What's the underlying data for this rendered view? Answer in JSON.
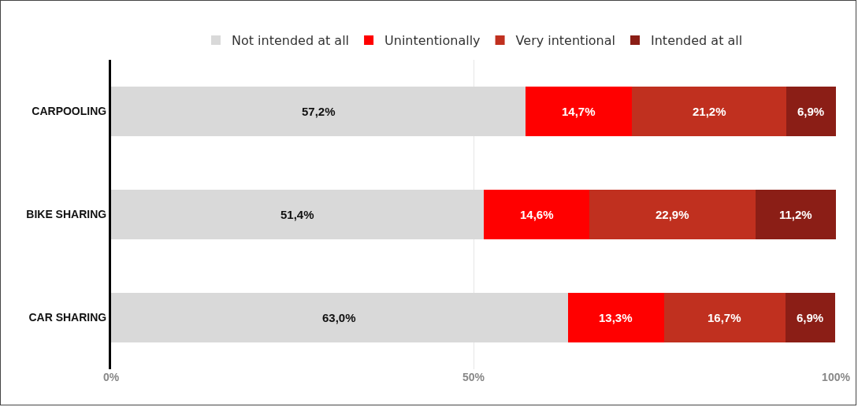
{
  "chart_data": {
    "type": "bar",
    "orientation": "horizontal",
    "stacked": true,
    "categories": [
      "CARPOOLING",
      "BIKE SHARING",
      "CAR SHARING"
    ],
    "series": [
      {
        "name": "Not intended at all",
        "color": "#d9d9d9",
        "values": [
          57.2,
          51.4,
          63.0
        ],
        "value_labels": [
          "57,2%",
          "51,4%",
          "63,0%"
        ]
      },
      {
        "name": "Unintentionally",
        "color": "#ff0000",
        "values": [
          14.7,
          14.6,
          13.3
        ],
        "value_labels": [
          "14,7%",
          "14,6%",
          "13,3%"
        ]
      },
      {
        "name": "Very intentional",
        "color": "#c0301f",
        "values": [
          21.2,
          22.9,
          16.7
        ],
        "value_labels": [
          "21,2%",
          "22,9%",
          "16,7%"
        ]
      },
      {
        "name": "Intended at all",
        "color": "#8b1e16",
        "values": [
          6.9,
          11.2,
          6.9
        ],
        "value_labels": [
          "6,9%",
          "11,2%",
          "6,9%"
        ]
      }
    ],
    "xlim": [
      0,
      100
    ],
    "xticks": [
      {
        "value": 0,
        "label": "0%"
      },
      {
        "value": 50,
        "label": "50%"
      },
      {
        "value": 100,
        "label": "100%"
      }
    ],
    "grid": "x",
    "legend": "top"
  }
}
